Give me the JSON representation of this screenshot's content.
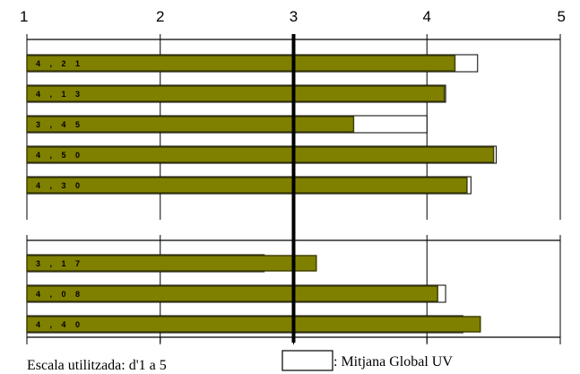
{
  "chart_data": {
    "type": "bar",
    "orientation": "horizontal",
    "xlim": [
      1,
      5
    ],
    "tick_labels": [
      "1",
      "2",
      "3",
      "4",
      "5"
    ],
    "reference_line": 3,
    "groups": [
      {
        "bars": [
          {
            "value": 4.21,
            "label": "4 , 2 1",
            "global": 4.38
          },
          {
            "value": 4.13,
            "label": "4 , 1 3",
            "global": 4.14
          },
          {
            "value": 3.45,
            "label": "3 , 4 5",
            "global": 4.0
          },
          {
            "value": 4.5,
            "label": "4 , 5 0",
            "global": 4.52
          },
          {
            "value": 4.3,
            "label": "4 , 3 0",
            "global": 4.33
          }
        ]
      },
      {
        "bars": [
          {
            "value": 3.17,
            "label": "3 , 1 7",
            "global": 2.78
          },
          {
            "value": 4.08,
            "label": "4 , 0 8",
            "global": 4.14
          },
          {
            "value": 4.4,
            "label": "4 , 4 0",
            "global": 4.27
          }
        ]
      }
    ],
    "colors": {
      "bar": "#808000",
      "bar_edge": "#404000",
      "global_fill": "#ffffff",
      "global_edge": "#000000"
    },
    "legend": {
      "label": ": Mitjana Global UV",
      "placement": "bottom-right"
    },
    "note": "Escala utilitzada: d'1 a 5"
  }
}
